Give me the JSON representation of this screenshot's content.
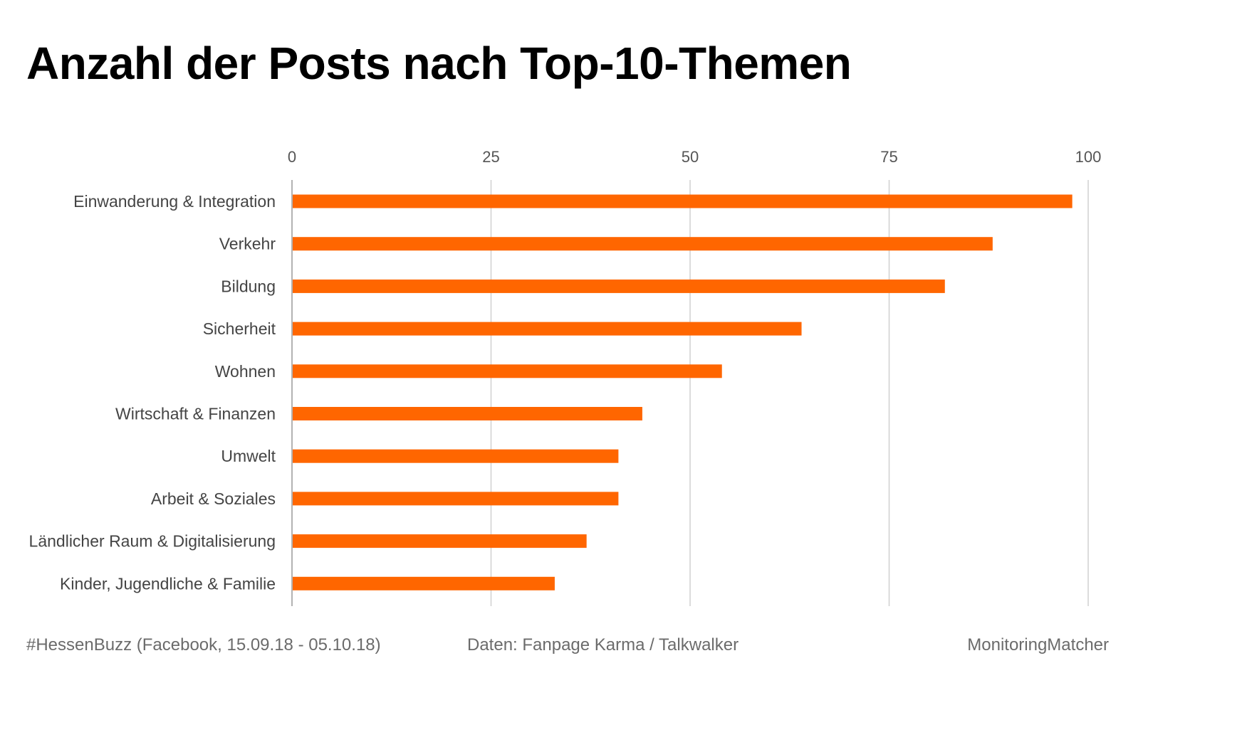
{
  "chart_data": {
    "type": "bar",
    "orientation": "horizontal",
    "title": "Anzahl der Posts nach Top-10-Themen",
    "categories": [
      "Einwanderung & Integration",
      "Verkehr",
      "Bildung",
      "Sicherheit",
      "Wohnen",
      "Wirtschaft & Finanzen",
      "Umwelt",
      "Arbeit & Soziales",
      "Ländlicher Raum & Digitalisierung",
      "Kinder, Jugendliche & Familie"
    ],
    "values": [
      98,
      88,
      82,
      64,
      54,
      44,
      41,
      41,
      37,
      33
    ],
    "xlim": [
      0,
      100
    ],
    "x_ticks": [
      "0",
      "25",
      "50",
      "75",
      "100"
    ],
    "tick_values": [
      0,
      25,
      50,
      75,
      100
    ],
    "axis_position": "top",
    "grid": true,
    "colors": {
      "bar": "#ff6600",
      "grid": "#d0d0d0",
      "axis": "#999999"
    }
  },
  "footer": {
    "hashtag": "#HessenBuzz (Facebook, 15.09.18 - 05.10.18)",
    "source": "Daten: Fanpage Karma / Talkwalker",
    "brand": "MonitoringMatcher"
  }
}
